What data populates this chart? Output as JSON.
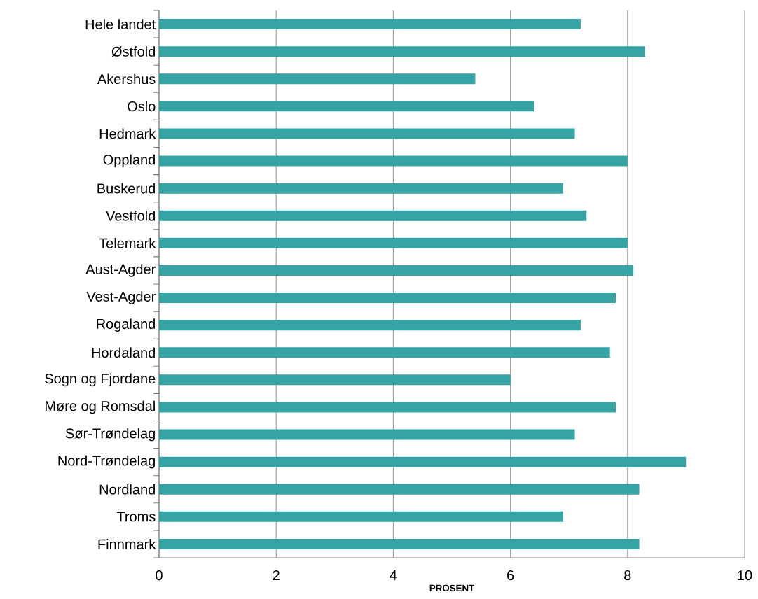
{
  "chart_data": {
    "type": "bar",
    "orientation": "horizontal",
    "xlabel": "PROSENT",
    "categories": [
      "Hele landet",
      "Østfold",
      "Akershus",
      "Oslo",
      "Hedmark",
      "Oppland",
      "Buskerud",
      "Vestfold",
      "Telemark",
      "Aust-Agder",
      "Vest-Agder",
      "Rogaland",
      "Hordaland",
      "Sogn og Fjordane",
      "Møre og Romsdal",
      "Sør-Trøndelag",
      "Nord-Trøndelag",
      "Nordland",
      "Troms",
      "Finnmark"
    ],
    "values": [
      7.2,
      8.3,
      5.4,
      6.4,
      7.1,
      8.0,
      6.9,
      7.3,
      8.0,
      8.1,
      7.8,
      7.2,
      7.7,
      6.0,
      7.8,
      7.1,
      9.0,
      8.2,
      6.9,
      8.2
    ],
    "color": "#36a3a5",
    "xlim": [
      0,
      10
    ],
    "xticks": [
      0,
      2,
      4,
      6,
      8,
      10
    ],
    "grid": "x"
  }
}
